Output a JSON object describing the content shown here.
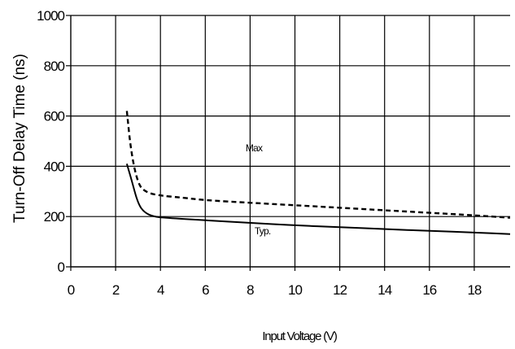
{
  "chart_data": {
    "type": "line",
    "title": "",
    "xlabel": "Input Voltage (V)",
    "ylabel": "Turn-Off Delay Time (ns)",
    "xlim": [
      0,
      19.6
    ],
    "ylim": [
      0,
      1000
    ],
    "x_ticks": [
      "0",
      "2",
      "4",
      "6",
      "8",
      "10",
      "12",
      "14",
      "16",
      "18"
    ],
    "y_ticks": [
      "0",
      "200",
      "400",
      "600",
      "800",
      "1000"
    ],
    "grid": true,
    "series": [
      {
        "name": "Max",
        "style": "dashed",
        "points": [
          [
            2.5,
            620
          ],
          [
            2.7,
            450
          ],
          [
            3.0,
            330
          ],
          [
            3.3,
            300
          ],
          [
            3.8,
            285
          ],
          [
            5,
            275
          ],
          [
            6,
            265
          ],
          [
            8,
            255
          ],
          [
            10,
            245
          ],
          [
            12,
            235
          ],
          [
            14,
            225
          ],
          [
            16,
            215
          ],
          [
            18,
            205
          ],
          [
            19.6,
            195
          ]
        ]
      },
      {
        "name": "Typ.",
        "style": "solid",
        "points": [
          [
            2.5,
            410
          ],
          [
            2.7,
            350
          ],
          [
            3.0,
            250
          ],
          [
            3.3,
            215
          ],
          [
            3.7,
            200
          ],
          [
            4.2,
            195
          ],
          [
            6,
            185
          ],
          [
            8,
            175
          ],
          [
            10,
            165
          ],
          [
            12,
            158
          ],
          [
            14,
            150
          ],
          [
            16,
            143
          ],
          [
            18,
            137
          ],
          [
            19.6,
            130
          ]
        ]
      }
    ],
    "annotations": [
      {
        "text": "Max",
        "x": 7.8,
        "y": 460
      },
      {
        "text": "Typ.",
        "x": 8.2,
        "y": 130
      }
    ]
  },
  "colors": {
    "line": "#000000",
    "grid": "#000000",
    "background": "#ffffff"
  }
}
